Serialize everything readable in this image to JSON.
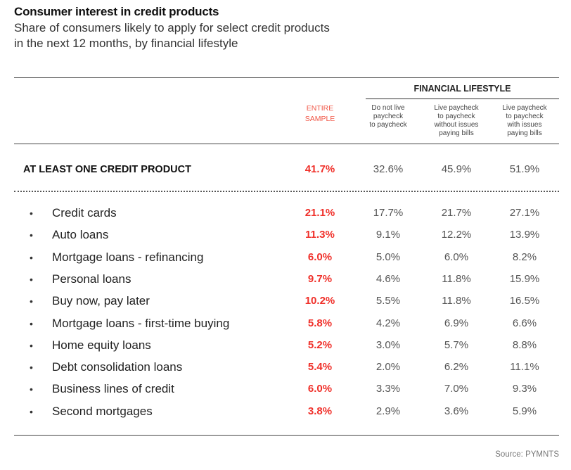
{
  "chart_data": {
    "type": "table",
    "title": "Consumer interest in credit products",
    "subtitle_lines": [
      "Share of consumers likely to apply for select credit products",
      "in the next 12 months, by financial lifestyle"
    ],
    "group_header": "FINANCIAL LIFESTYLE",
    "columns": [
      "ENTIRE SAMPLE",
      "Do not live paycheck to paycheck",
      "Live paycheck to paycheck without issues paying bills",
      "Live paycheck to paycheck with issues paying bills"
    ],
    "entire_header_lines": [
      "ENTIRE",
      "SAMPLE"
    ],
    "col_header_lines": [
      [
        "Do not live",
        "paycheck",
        "to paycheck"
      ],
      [
        "Live paycheck",
        "to paycheck",
        "without issues",
        "paying bills"
      ],
      [
        "Live paycheck",
        "to paycheck",
        "with issues",
        "paying bills"
      ]
    ],
    "summary": {
      "label": "AT LEAST ONE CREDIT PRODUCT",
      "values": [
        "41.7%",
        "32.6%",
        "45.9%",
        "51.9%"
      ]
    },
    "rows": [
      {
        "label": "Credit cards",
        "values": [
          "21.1%",
          "17.7%",
          "21.7%",
          "27.1%"
        ]
      },
      {
        "label": "Auto loans",
        "values": [
          "11.3%",
          "9.1%",
          "12.2%",
          "13.9%"
        ]
      },
      {
        "label": "Mortgage loans - refinancing",
        "values": [
          "6.0%",
          "5.0%",
          "6.0%",
          "8.2%"
        ]
      },
      {
        "label": "Personal loans",
        "values": [
          "9.7%",
          "4.6%",
          "11.8%",
          "15.9%"
        ]
      },
      {
        "label": "Buy now, pay later",
        "values": [
          "10.2%",
          "5.5%",
          "11.8%",
          "16.5%"
        ]
      },
      {
        "label": "Mortgage loans - first-time buying",
        "values": [
          "5.8%",
          "4.2%",
          "6.9%",
          "6.6%"
        ]
      },
      {
        "label": "Home equity loans",
        "values": [
          "5.2%",
          "3.0%",
          "5.7%",
          "8.8%"
        ]
      },
      {
        "label": "Debt consolidation loans",
        "values": [
          "5.4%",
          "2.0%",
          "6.2%",
          "11.1%"
        ]
      },
      {
        "label": "Business lines of credit",
        "values": [
          "6.0%",
          "3.3%",
          "7.0%",
          "9.3%"
        ]
      },
      {
        "label": "Second mortgages",
        "values": [
          "3.8%",
          "2.9%",
          "3.6%",
          "5.9%"
        ]
      }
    ],
    "bullet": "•",
    "source": "Source: PYMNTS",
    "colors": {
      "highlight": "#f0302a",
      "header_highlight": "#f05545",
      "text": "#333333"
    }
  }
}
